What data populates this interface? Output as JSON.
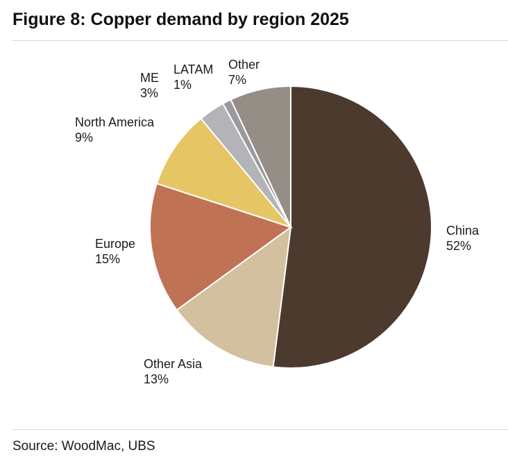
{
  "figure": {
    "title": "Figure 8: Copper demand by region 2025",
    "source": "Source: WoodMac, UBS"
  },
  "chart_data": {
    "type": "pie",
    "unit": "%",
    "slices": [
      {
        "name": "China",
        "value": 52,
        "label": "52%",
        "color": "#4d3a2f"
      },
      {
        "name": "Other Asia",
        "value": 13,
        "label": "13%",
        "color": "#d2c09e"
      },
      {
        "name": "Europe",
        "value": 15,
        "label": "15%",
        "color": "#c07255"
      },
      {
        "name": "North America",
        "value": 9,
        "label": "9%",
        "color": "#e6c565"
      },
      {
        "name": "ME",
        "value": 3,
        "label": "3%",
        "color": "#b3b4b8"
      },
      {
        "name": "LATAM",
        "value": 1,
        "label": "1%",
        "color": "#9a9a9f"
      },
      {
        "name": "Other",
        "value": 7,
        "label": "7%",
        "color": "#948e87"
      }
    ],
    "start": "12 o'clock",
    "direction": "clockwise",
    "legend": "none (labels beside slices)"
  }
}
